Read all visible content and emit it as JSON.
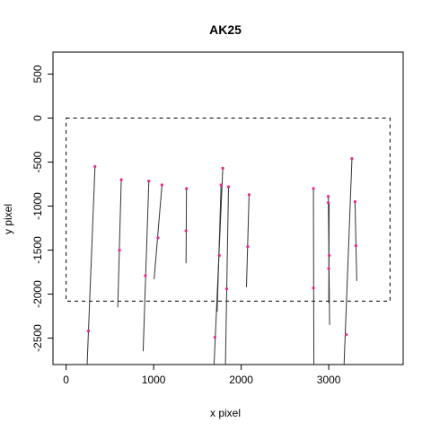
{
  "chart_data": {
    "type": "line",
    "title": "AK25",
    "xlabel": "x pixel",
    "ylabel": "y pixel",
    "xlim": [
      -150,
      3850
    ],
    "ylim": [
      -2800,
      750
    ],
    "xticks": [
      0,
      1000,
      2000,
      3000
    ],
    "yticks": [
      500,
      0,
      -500,
      -1000,
      -1500,
      -2000,
      -2500
    ],
    "xtick_labels": [
      "0",
      "1000",
      "2000",
      "3000"
    ],
    "ytick_labels": [
      "500",
      "0",
      "-500",
      "-1000",
      "-1500",
      "-2000",
      "-2500"
    ],
    "grid": false,
    "frame_rect": {
      "x": [
        0,
        3700
      ],
      "y": [
        -2080,
        0
      ],
      "style": "dashed"
    },
    "segment_color": "#333333",
    "point_color": "#e7298a",
    "segments": [
      {
        "x": [
          330,
          240
        ],
        "y": [
          -550,
          -2800
        ]
      },
      {
        "x": [
          630,
          590
        ],
        "y": [
          -700,
          -2150
        ]
      },
      {
        "x": [
          945,
          880
        ],
        "y": [
          -715,
          -2650
        ]
      },
      {
        "x": [
          1095,
          1005
        ],
        "y": [
          -760,
          -1830
        ]
      },
      {
        "x": [
          1375,
          1370
        ],
        "y": [
          -800,
          -1650
        ]
      },
      {
        "x": [
          1790,
          1690
        ],
        "y": [
          -570,
          -2800
        ]
      },
      {
        "x": [
          1770,
          1725
        ],
        "y": [
          -760,
          -2200
        ]
      },
      {
        "x": [
          1855,
          1820
        ],
        "y": [
          -780,
          -2800
        ]
      },
      {
        "x": [
          2090,
          2060
        ],
        "y": [
          -870,
          -1920
        ]
      },
      {
        "x": [
          2825,
          2830
        ],
        "y": [
          -800,
          -2800
        ]
      },
      {
        "x": [
          2995,
          3010
        ],
        "y": [
          -890,
          -2350
        ]
      },
      {
        "x": [
          3005,
          3000
        ],
        "y": [
          -960,
          -2100
        ]
      },
      {
        "x": [
          3265,
          3175
        ],
        "y": [
          -460,
          -2800
        ]
      },
      {
        "x": [
          3300,
          3320
        ],
        "y": [
          -950,
          -1850
        ]
      }
    ],
    "points": [
      {
        "x": 330,
        "y": -550
      },
      {
        "x": 255,
        "y": -2420
      },
      {
        "x": 630,
        "y": -700
      },
      {
        "x": 610,
        "y": -1500
      },
      {
        "x": 945,
        "y": -715
      },
      {
        "x": 905,
        "y": -1790
      },
      {
        "x": 1095,
        "y": -760
      },
      {
        "x": 1050,
        "y": -1360
      },
      {
        "x": 1375,
        "y": -800
      },
      {
        "x": 1370,
        "y": -1280
      },
      {
        "x": 1790,
        "y": -570
      },
      {
        "x": 1770,
        "y": -760
      },
      {
        "x": 1750,
        "y": -1560
      },
      {
        "x": 1700,
        "y": -2490
      },
      {
        "x": 1855,
        "y": -780
      },
      {
        "x": 1835,
        "y": -1940
      },
      {
        "x": 2090,
        "y": -870
      },
      {
        "x": 2075,
        "y": -1460
      },
      {
        "x": 2825,
        "y": -800
      },
      {
        "x": 2825,
        "y": -1930
      },
      {
        "x": 2995,
        "y": -890
      },
      {
        "x": 2995,
        "y": -960
      },
      {
        "x": 3005,
        "y": -1560
      },
      {
        "x": 3000,
        "y": -1710
      },
      {
        "x": 3265,
        "y": -460
      },
      {
        "x": 3200,
        "y": -2460
      },
      {
        "x": 3300,
        "y": -950
      },
      {
        "x": 3310,
        "y": -1450
      }
    ]
  }
}
